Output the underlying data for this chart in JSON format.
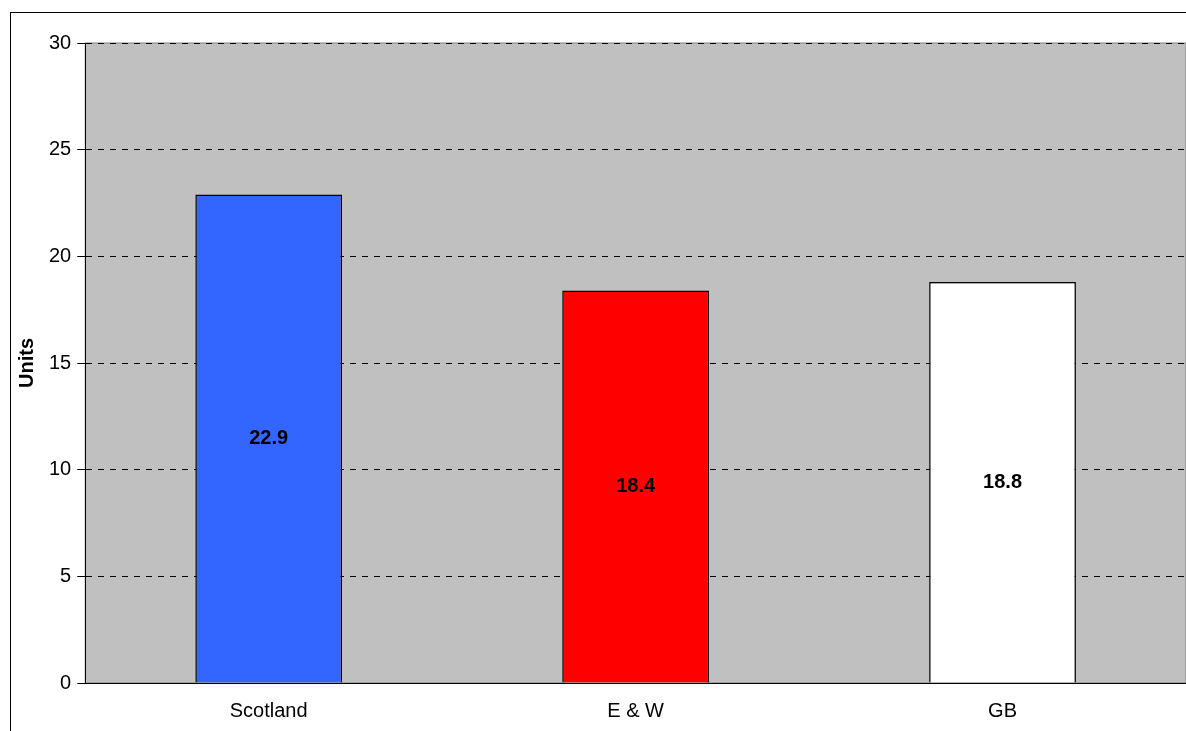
{
  "chart_data": {
    "type": "bar",
    "ylabel": "Units",
    "categories": [
      "Scotland",
      "E & W",
      "GB"
    ],
    "values": [
      22.9,
      18.4,
      18.8
    ],
    "colors": [
      "#3366ff",
      "#ff0000",
      "#ffffff"
    ],
    "ylim": [
      0,
      30
    ],
    "yticks": [
      0,
      5,
      10,
      15,
      20,
      25,
      30
    ],
    "grid": "y",
    "data_labels": true
  }
}
